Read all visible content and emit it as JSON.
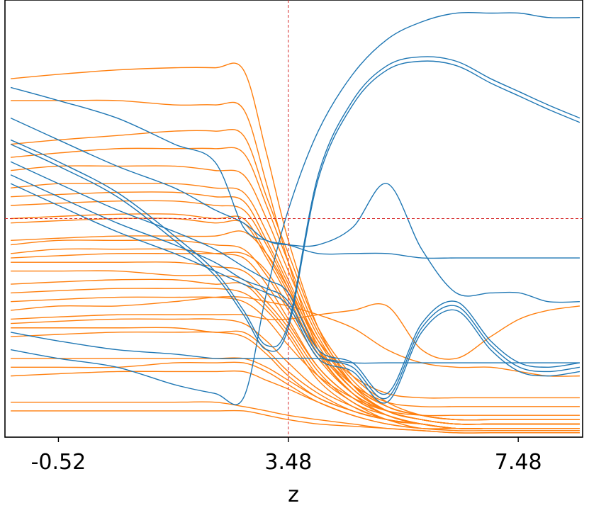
{
  "chart_data": {
    "type": "line",
    "xlabel": "z",
    "ylabel": "",
    "title": "",
    "xlim": [
      -1.45,
      8.6
    ],
    "ylim": [
      0,
      1
    ],
    "xticks": [
      -0.52,
      3.48,
      7.48
    ],
    "xtick_labels": [
      "-0.52",
      "3.48",
      "7.48"
    ],
    "yticks_visible": false,
    "grid": false,
    "reference_lines": {
      "vertical_x": 3.48,
      "horizontal_y": 0.5,
      "color": "#d62728",
      "style": "dashed"
    },
    "colors": {
      "blue": "#1f77b4",
      "orange": "#ff7f0e"
    },
    "x": [
      -1.35,
      -0.52,
      0.5,
      1.5,
      2.2,
      2.7,
      3.1,
      3.48,
      4.0,
      4.6,
      5.2,
      5.8,
      6.4,
      7.0,
      7.5,
      8.0,
      8.55
    ],
    "series": [
      {
        "color": "blue",
        "values": [
          0.8,
          0.77,
          0.73,
          0.67,
          0.63,
          0.48,
          0.45,
          0.44,
          0.42,
          0.42,
          0.42,
          0.41,
          0.41,
          0.41,
          0.41,
          0.41,
          0.41
        ]
      },
      {
        "color": "blue",
        "values": [
          0.2,
          0.18,
          0.16,
          0.12,
          0.1,
          0.09,
          0.33,
          0.52,
          0.7,
          0.83,
          0.91,
          0.95,
          0.97,
          0.97,
          0.97,
          0.96,
          0.96
        ]
      },
      {
        "color": "blue",
        "values": [
          0.73,
          0.68,
          0.62,
          0.57,
          0.52,
          0.49,
          0.45,
          0.44,
          0.44,
          0.48,
          0.58,
          0.43,
          0.33,
          0.33,
          0.33,
          0.31,
          0.31
        ]
      },
      {
        "color": "blue",
        "values": [
          0.68,
          0.63,
          0.56,
          0.46,
          0.38,
          0.29,
          0.21,
          0.26,
          0.6,
          0.77,
          0.85,
          0.87,
          0.86,
          0.82,
          0.79,
          0.76,
          0.73
        ]
      },
      {
        "color": "blue",
        "values": [
          0.67,
          0.62,
          0.55,
          0.45,
          0.37,
          0.28,
          0.2,
          0.25,
          0.59,
          0.76,
          0.84,
          0.86,
          0.85,
          0.81,
          0.78,
          0.75,
          0.72
        ]
      },
      {
        "color": "blue",
        "values": [
          0.63,
          0.58,
          0.52,
          0.47,
          0.43,
          0.39,
          0.36,
          0.33,
          0.2,
          0.17,
          0.1,
          0.26,
          0.31,
          0.22,
          0.17,
          0.16,
          0.17
        ]
      },
      {
        "color": "blue",
        "values": [
          0.6,
          0.55,
          0.49,
          0.44,
          0.4,
          0.36,
          0.34,
          0.31,
          0.19,
          0.16,
          0.09,
          0.25,
          0.3,
          0.21,
          0.16,
          0.15,
          0.16
        ]
      },
      {
        "color": "blue",
        "values": [
          0.58,
          0.53,
          0.47,
          0.42,
          0.38,
          0.35,
          0.33,
          0.3,
          0.18,
          0.15,
          0.08,
          0.24,
          0.29,
          0.2,
          0.15,
          0.14,
          0.15
        ]
      },
      {
        "color": "blue",
        "values": [
          0.24,
          0.22,
          0.2,
          0.19,
          0.18,
          0.18,
          0.18,
          0.18,
          0.18,
          0.17,
          0.17,
          0.17,
          0.17,
          0.17,
          0.17,
          0.17,
          0.17
        ]
      },
      {
        "color": "orange",
        "values": [
          0.82,
          0.83,
          0.84,
          0.845,
          0.845,
          0.84,
          0.65,
          0.45,
          0.25,
          0.12,
          0.06,
          0.04,
          0.03,
          0.03,
          0.03,
          0.03,
          0.03
        ]
      },
      {
        "color": "orange",
        "values": [
          0.77,
          0.77,
          0.77,
          0.76,
          0.76,
          0.75,
          0.58,
          0.4,
          0.2,
          0.1,
          0.05,
          0.03,
          0.02,
          0.02,
          0.02,
          0.02,
          0.02
        ]
      },
      {
        "color": "orange",
        "values": [
          0.67,
          0.68,
          0.69,
          0.7,
          0.7,
          0.69,
          0.55,
          0.42,
          0.25,
          0.14,
          0.08,
          0.05,
          0.04,
          0.04,
          0.04,
          0.04,
          0.04
        ]
      },
      {
        "color": "orange",
        "values": [
          0.64,
          0.65,
          0.66,
          0.66,
          0.66,
          0.65,
          0.53,
          0.4,
          0.24,
          0.13,
          0.07,
          0.05,
          0.04,
          0.04,
          0.04,
          0.04,
          0.04
        ]
      },
      {
        "color": "orange",
        "values": [
          0.61,
          0.62,
          0.62,
          0.62,
          0.61,
          0.6,
          0.5,
          0.38,
          0.23,
          0.12,
          0.07,
          0.05,
          0.04,
          0.04,
          0.04,
          0.04,
          0.04
        ]
      },
      {
        "color": "orange",
        "values": [
          0.57,
          0.58,
          0.58,
          0.58,
          0.57,
          0.56,
          0.47,
          0.36,
          0.22,
          0.12,
          0.07,
          0.05,
          0.04,
          0.04,
          0.04,
          0.04,
          0.04
        ]
      },
      {
        "color": "orange",
        "values": [
          0.55,
          0.555,
          0.56,
          0.56,
          0.55,
          0.54,
          0.45,
          0.35,
          0.21,
          0.11,
          0.06,
          0.04,
          0.03,
          0.03,
          0.03,
          0.03,
          0.03
        ]
      },
      {
        "color": "orange",
        "values": [
          0.53,
          0.535,
          0.54,
          0.54,
          0.53,
          0.52,
          0.44,
          0.34,
          0.2,
          0.11,
          0.06,
          0.04,
          0.03,
          0.03,
          0.03,
          0.03,
          0.03
        ]
      },
      {
        "color": "orange",
        "values": [
          0.5,
          0.505,
          0.51,
          0.51,
          0.5,
          0.5,
          0.42,
          0.33,
          0.2,
          0.11,
          0.06,
          0.04,
          0.03,
          0.03,
          0.03,
          0.03,
          0.03
        ]
      },
      {
        "color": "orange",
        "values": [
          0.49,
          0.495,
          0.5,
          0.5,
          0.49,
          0.49,
          0.41,
          0.32,
          0.19,
          0.1,
          0.06,
          0.04,
          0.03,
          0.03,
          0.03,
          0.03,
          0.03
        ]
      },
      {
        "color": "orange",
        "values": [
          0.44,
          0.45,
          0.45,
          0.45,
          0.44,
          0.43,
          0.37,
          0.29,
          0.18,
          0.1,
          0.06,
          0.04,
          0.03,
          0.03,
          0.03,
          0.03,
          0.03
        ]
      },
      {
        "color": "orange",
        "values": [
          0.42,
          0.43,
          0.43,
          0.43,
          0.42,
          0.41,
          0.35,
          0.27,
          0.16,
          0.09,
          0.05,
          0.03,
          0.02,
          0.02,
          0.02,
          0.02,
          0.02
        ]
      },
      {
        "color": "orange",
        "values": [
          0.4,
          0.4,
          0.4,
          0.4,
          0.39,
          0.38,
          0.33,
          0.26,
          0.16,
          0.09,
          0.05,
          0.03,
          0.02,
          0.02,
          0.02,
          0.02,
          0.02
        ]
      },
      {
        "color": "orange",
        "values": [
          0.38,
          0.38,
          0.38,
          0.37,
          0.37,
          0.36,
          0.31,
          0.25,
          0.15,
          0.08,
          0.05,
          0.03,
          0.02,
          0.02,
          0.02,
          0.02,
          0.02
        ]
      },
      {
        "color": "orange",
        "values": [
          0.35,
          0.355,
          0.36,
          0.36,
          0.35,
          0.35,
          0.3,
          0.24,
          0.14,
          0.08,
          0.04,
          0.03,
          0.02,
          0.02,
          0.02,
          0.02,
          0.02
        ]
      },
      {
        "color": "orange",
        "values": [
          0.33,
          0.335,
          0.34,
          0.34,
          0.34,
          0.33,
          0.29,
          0.23,
          0.13,
          0.07,
          0.04,
          0.02,
          0.02,
          0.02,
          0.02,
          0.02,
          0.02
        ]
      },
      {
        "color": "orange",
        "values": [
          0.29,
          0.3,
          0.3,
          0.31,
          0.32,
          0.32,
          0.31,
          0.3,
          0.28,
          0.25,
          0.2,
          0.17,
          0.16,
          0.16,
          0.15,
          0.14,
          0.14
        ]
      },
      {
        "color": "orange",
        "values": [
          0.27,
          0.275,
          0.28,
          0.28,
          0.28,
          0.28,
          0.27,
          0.27,
          0.28,
          0.29,
          0.3,
          0.2,
          0.18,
          0.23,
          0.27,
          0.29,
          0.3
        ]
      },
      {
        "color": "orange",
        "values": [
          0.26,
          0.265,
          0.27,
          0.27,
          0.27,
          0.26,
          0.22,
          0.17,
          0.11,
          0.07,
          0.04,
          0.03,
          0.02,
          0.02,
          0.02,
          0.02,
          0.02
        ]
      },
      {
        "color": "orange",
        "values": [
          0.25,
          0.25,
          0.25,
          0.25,
          0.24,
          0.24,
          0.2,
          0.15,
          0.1,
          0.06,
          0.04,
          0.03,
          0.02,
          0.02,
          0.02,
          0.02,
          0.02
        ]
      },
      {
        "color": "orange",
        "values": [
          0.23,
          0.235,
          0.24,
          0.24,
          0.24,
          0.23,
          0.19,
          0.14,
          0.09,
          0.06,
          0.04,
          0.03,
          0.02,
          0.02,
          0.02,
          0.02,
          0.02
        ]
      },
      {
        "color": "orange",
        "values": [
          0.18,
          0.18,
          0.18,
          0.18,
          0.18,
          0.18,
          0.16,
          0.13,
          0.09,
          0.06,
          0.04,
          0.03,
          0.02,
          0.02,
          0.02,
          0.02,
          0.02
        ]
      },
      {
        "color": "orange",
        "values": [
          0.16,
          0.16,
          0.16,
          0.17,
          0.17,
          0.17,
          0.15,
          0.12,
          0.08,
          0.05,
          0.03,
          0.02,
          0.02,
          0.02,
          0.02,
          0.02,
          0.02
        ]
      },
      {
        "color": "orange",
        "values": [
          0.14,
          0.145,
          0.15,
          0.15,
          0.15,
          0.15,
          0.13,
          0.11,
          0.08,
          0.05,
          0.03,
          0.02,
          0.015,
          0.015,
          0.015,
          0.015,
          0.015
        ]
      },
      {
        "color": "orange",
        "values": [
          0.08,
          0.08,
          0.08,
          0.08,
          0.08,
          0.07,
          0.06,
          0.05,
          0.04,
          0.03,
          0.02,
          0.015,
          0.01,
          0.01,
          0.01,
          0.01,
          0.01
        ]
      },
      {
        "color": "orange",
        "values": [
          0.06,
          0.06,
          0.06,
          0.06,
          0.06,
          0.06,
          0.05,
          0.04,
          0.03,
          0.025,
          0.02,
          0.015,
          0.01,
          0.01,
          0.01,
          0.01,
          0.01
        ]
      },
      {
        "color": "orange",
        "values": [
          0.45,
          0.455,
          0.46,
          0.46,
          0.46,
          0.47,
          0.42,
          0.34,
          0.22,
          0.14,
          0.1,
          0.09,
          0.09,
          0.09,
          0.09,
          0.09,
          0.09
        ]
      },
      {
        "color": "orange",
        "values": [
          0.41,
          0.415,
          0.42,
          0.42,
          0.42,
          0.42,
          0.38,
          0.3,
          0.2,
          0.12,
          0.08,
          0.07,
          0.07,
          0.07,
          0.07,
          0.07,
          0.07
        ]
      },
      {
        "color": "orange",
        "values": [
          0.31,
          0.315,
          0.32,
          0.32,
          0.32,
          0.31,
          0.27,
          0.21,
          0.14,
          0.09,
          0.06,
          0.05,
          0.05,
          0.05,
          0.05,
          0.05,
          0.05
        ]
      }
    ]
  }
}
